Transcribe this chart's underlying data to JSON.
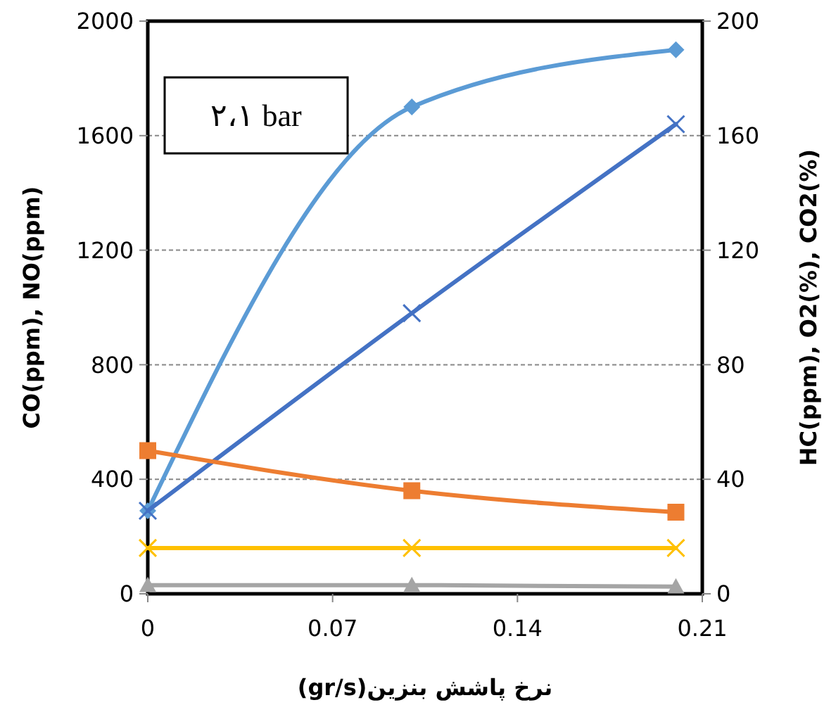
{
  "chart_data": {
    "type": "line",
    "xlabel": "نرخ پاشش بنزین(gr/s)",
    "ylabel": "CO(ppm), NO(ppm)",
    "y2label": "HC(ppm), O2(%), CO2(%)",
    "annotations": [
      "٢،١ bar"
    ],
    "x": [
      0,
      0.1,
      0.2
    ],
    "xlim": [
      0,
      0.21
    ],
    "xticks": [
      0,
      0.07,
      0.14,
      0.21
    ],
    "ylim": [
      0,
      2000
    ],
    "yticks": [
      0,
      400,
      800,
      1200,
      1600,
      2000
    ],
    "y2lim": [
      0,
      200
    ],
    "y2ticks": [
      0,
      40,
      80,
      120,
      160,
      200
    ],
    "grid": "y",
    "series": [
      {
        "color": "#5b9bd5",
        "values": [
          290,
          1700,
          1900
        ],
        "marker": "diamond"
      },
      {
        "color": "#4472c4",
        "values": [
          290,
          980,
          1640
        ],
        "marker": "cross"
      },
      {
        "color": "#ed7d31",
        "values": [
          500,
          360,
          285
        ],
        "marker": "square"
      },
      {
        "color": "#ffc000",
        "values": [
          160,
          160,
          160
        ],
        "marker": "cross"
      },
      {
        "color": "#a5a5a5",
        "values": [
          30,
          30,
          25
        ],
        "marker": "triangle"
      }
    ]
  }
}
